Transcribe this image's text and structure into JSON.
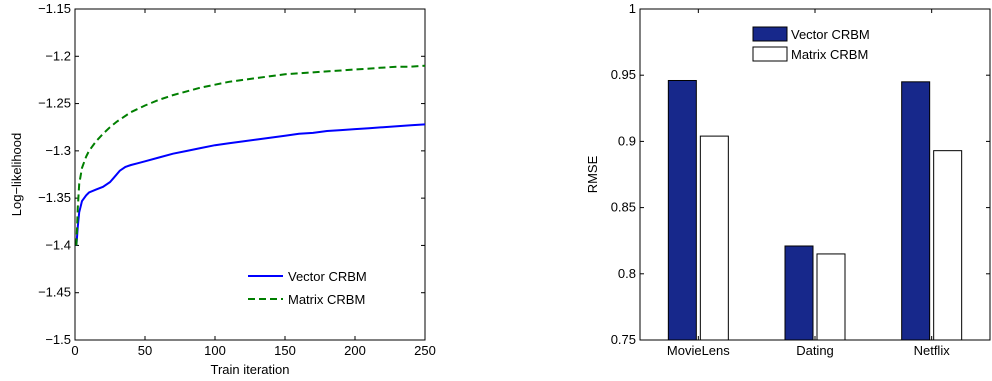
{
  "chart_data": [
    {
      "type": "line",
      "title": "",
      "xlabel": "Train iteration",
      "ylabel": "Log−likelihood",
      "xlim": [
        0,
        250
      ],
      "ylim": [
        -1.5,
        -1.15
      ],
      "xticks": [
        0,
        50,
        100,
        150,
        200,
        250
      ],
      "xtick_labels": [
        "0",
        "50",
        "100",
        "150",
        "200",
        "250"
      ],
      "yticks": [
        -1.15,
        -1.2,
        -1.25,
        -1.3,
        -1.35,
        -1.4,
        -1.45,
        -1.5
      ],
      "ytick_labels": [
        "−1.15",
        "−1.2",
        "−1.25",
        "−1.3",
        "−1.35",
        "−1.4",
        "−1.45",
        "−1.5"
      ],
      "grid": false,
      "legend_position": "bottom-right",
      "series": [
        {
          "name": "Vector CRBM",
          "color": "#0000ff",
          "style": "solid",
          "x": [
            1,
            2,
            3,
            5,
            8,
            10,
            15,
            20,
            25,
            28,
            32,
            36,
            40,
            45,
            50,
            60,
            70,
            80,
            90,
            100,
            110,
            120,
            130,
            140,
            150,
            160,
            170,
            180,
            190,
            200,
            210,
            220,
            230,
            240,
            250
          ],
          "y": [
            -1.4,
            -1.38,
            -1.365,
            -1.353,
            -1.347,
            -1.344,
            -1.341,
            -1.338,
            -1.333,
            -1.328,
            -1.321,
            -1.317,
            -1.315,
            -1.313,
            -1.311,
            -1.307,
            -1.303,
            -1.3,
            -1.297,
            -1.294,
            -1.292,
            -1.29,
            -1.288,
            -1.286,
            -1.284,
            -1.282,
            -1.281,
            -1.279,
            -1.278,
            -1.277,
            -1.276,
            -1.275,
            -1.274,
            -1.273,
            -1.272
          ]
        },
        {
          "name": "Matrix CRBM",
          "color": "#007f00",
          "style": "dashed",
          "x": [
            1,
            2,
            3,
            5,
            8,
            10,
            15,
            20,
            25,
            30,
            40,
            50,
            60,
            70,
            80,
            90,
            100,
            110,
            120,
            130,
            140,
            150,
            160,
            170,
            180,
            190,
            200,
            210,
            220,
            230,
            240,
            250
          ],
          "y": [
            -1.4,
            -1.36,
            -1.335,
            -1.318,
            -1.306,
            -1.3,
            -1.29,
            -1.282,
            -1.275,
            -1.269,
            -1.259,
            -1.252,
            -1.246,
            -1.241,
            -1.237,
            -1.233,
            -1.23,
            -1.227,
            -1.225,
            -1.223,
            -1.221,
            -1.219,
            -1.218,
            -1.217,
            -1.216,
            -1.215,
            -1.214,
            -1.213,
            -1.212,
            -1.211,
            -1.211,
            -1.21
          ]
        }
      ]
    },
    {
      "type": "bar",
      "title": "",
      "xlabel": "",
      "ylabel": "RMSE",
      "categories": [
        "MovieLens",
        "Dating",
        "Netflix"
      ],
      "ylim": [
        0.75,
        1
      ],
      "yticks": [
        0.75,
        0.8,
        0.85,
        0.9,
        0.95,
        1
      ],
      "ytick_labels": [
        "0.75",
        "0.8",
        "0.85",
        "0.9",
        "0.95",
        "1"
      ],
      "grid": false,
      "legend_position": "top-center",
      "series": [
        {
          "name": "Vector CRBM",
          "color": "#17288b",
          "values": [
            0.946,
            0.821,
            0.945
          ]
        },
        {
          "name": "Matrix CRBM",
          "color": "#ffffff",
          "values": [
            0.904,
            0.815,
            0.893
          ]
        }
      ]
    }
  ]
}
